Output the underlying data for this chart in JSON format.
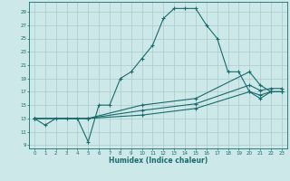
{
  "title": "",
  "xlabel": "Humidex (Indice chaleur)",
  "bg_color": "#cce8e8",
  "grid_color": "#aacccc",
  "line_color": "#1a6b6b",
  "xlim": [
    -0.5,
    23.5
  ],
  "ylim": [
    8.5,
    30.5
  ],
  "yticks": [
    9,
    11,
    13,
    15,
    17,
    19,
    21,
    23,
    25,
    27,
    29
  ],
  "xticks": [
    0,
    1,
    2,
    3,
    4,
    5,
    6,
    7,
    8,
    9,
    10,
    11,
    12,
    13,
    14,
    15,
    16,
    17,
    18,
    19,
    20,
    21,
    22,
    23
  ],
  "line1_x": [
    0,
    1,
    2,
    3,
    4,
    5,
    6,
    7,
    8,
    9,
    10,
    11,
    12,
    13,
    14,
    15,
    16,
    17,
    18,
    19,
    20,
    21,
    22,
    23
  ],
  "line1_y": [
    13,
    12,
    13,
    13,
    13,
    9.5,
    15,
    15,
    19,
    20,
    22,
    24,
    28,
    29.5,
    29.5,
    29.5,
    27,
    25,
    20,
    20,
    17,
    16,
    17,
    17
  ],
  "line2_x": [
    0,
    5,
    10,
    15,
    20,
    21,
    22,
    23
  ],
  "line2_y": [
    13,
    13,
    13.5,
    14.5,
    17,
    16.5,
    17,
    17
  ],
  "line3_x": [
    0,
    5,
    10,
    15,
    20,
    21,
    22,
    23
  ],
  "line3_y": [
    13,
    13,
    14.2,
    15.2,
    18,
    17.2,
    17.5,
    17.5
  ],
  "line4_x": [
    0,
    5,
    10,
    15,
    20,
    21,
    22,
    23
  ],
  "line4_y": [
    13,
    13,
    15,
    16,
    20,
    18,
    17,
    17
  ]
}
